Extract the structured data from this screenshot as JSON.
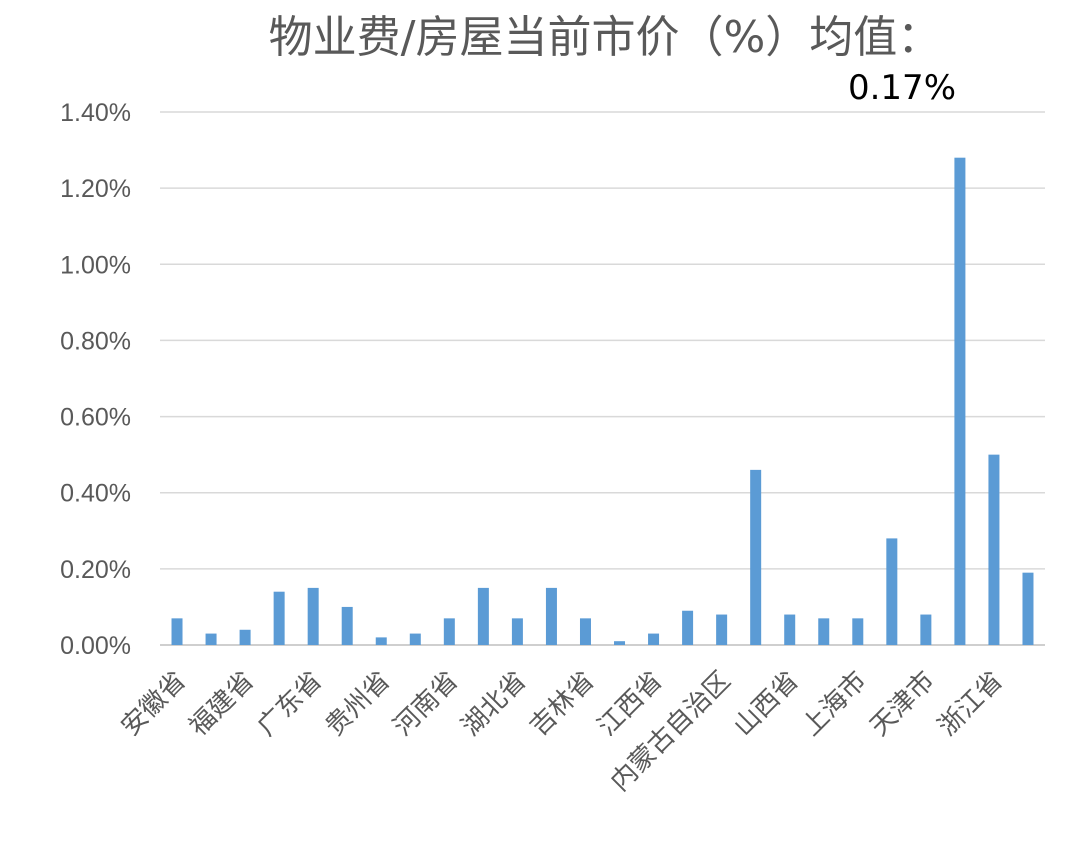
{
  "chart_data": {
    "type": "bar",
    "title": "物业费/房屋当前市价（%）均值：",
    "subtitle": "0.17%",
    "xlabel": "",
    "ylabel": "",
    "ylim": [
      0,
      1.4
    ],
    "y_ticks": [
      "0.00%",
      "0.20%",
      "0.40%",
      "0.60%",
      "0.80%",
      "1.00%",
      "1.20%",
      "1.40%"
    ],
    "grid": true,
    "legend": "none",
    "bar_color": "#5B9BD5",
    "categories": [
      "安徽省",
      "",
      "福建省",
      "",
      "广东省",
      "",
      "贵州省",
      "",
      "河南省",
      "",
      "湖北省",
      "",
      "吉林省",
      "",
      "江西省",
      "",
      "内蒙古自治区",
      "",
      "山西省",
      "",
      "上海市",
      "",
      "天津市",
      "",
      "浙江省",
      ""
    ],
    "values": [
      0.07,
      0.03,
      0.04,
      0.14,
      0.15,
      0.1,
      0.02,
      0.03,
      0.07,
      0.15,
      0.07,
      0.15,
      0.07,
      0.01,
      0.03,
      0.09,
      0.08,
      0.46,
      0.08,
      0.07,
      0.07,
      0.28,
      0.08,
      1.28,
      0.5,
      0.19
    ]
  }
}
